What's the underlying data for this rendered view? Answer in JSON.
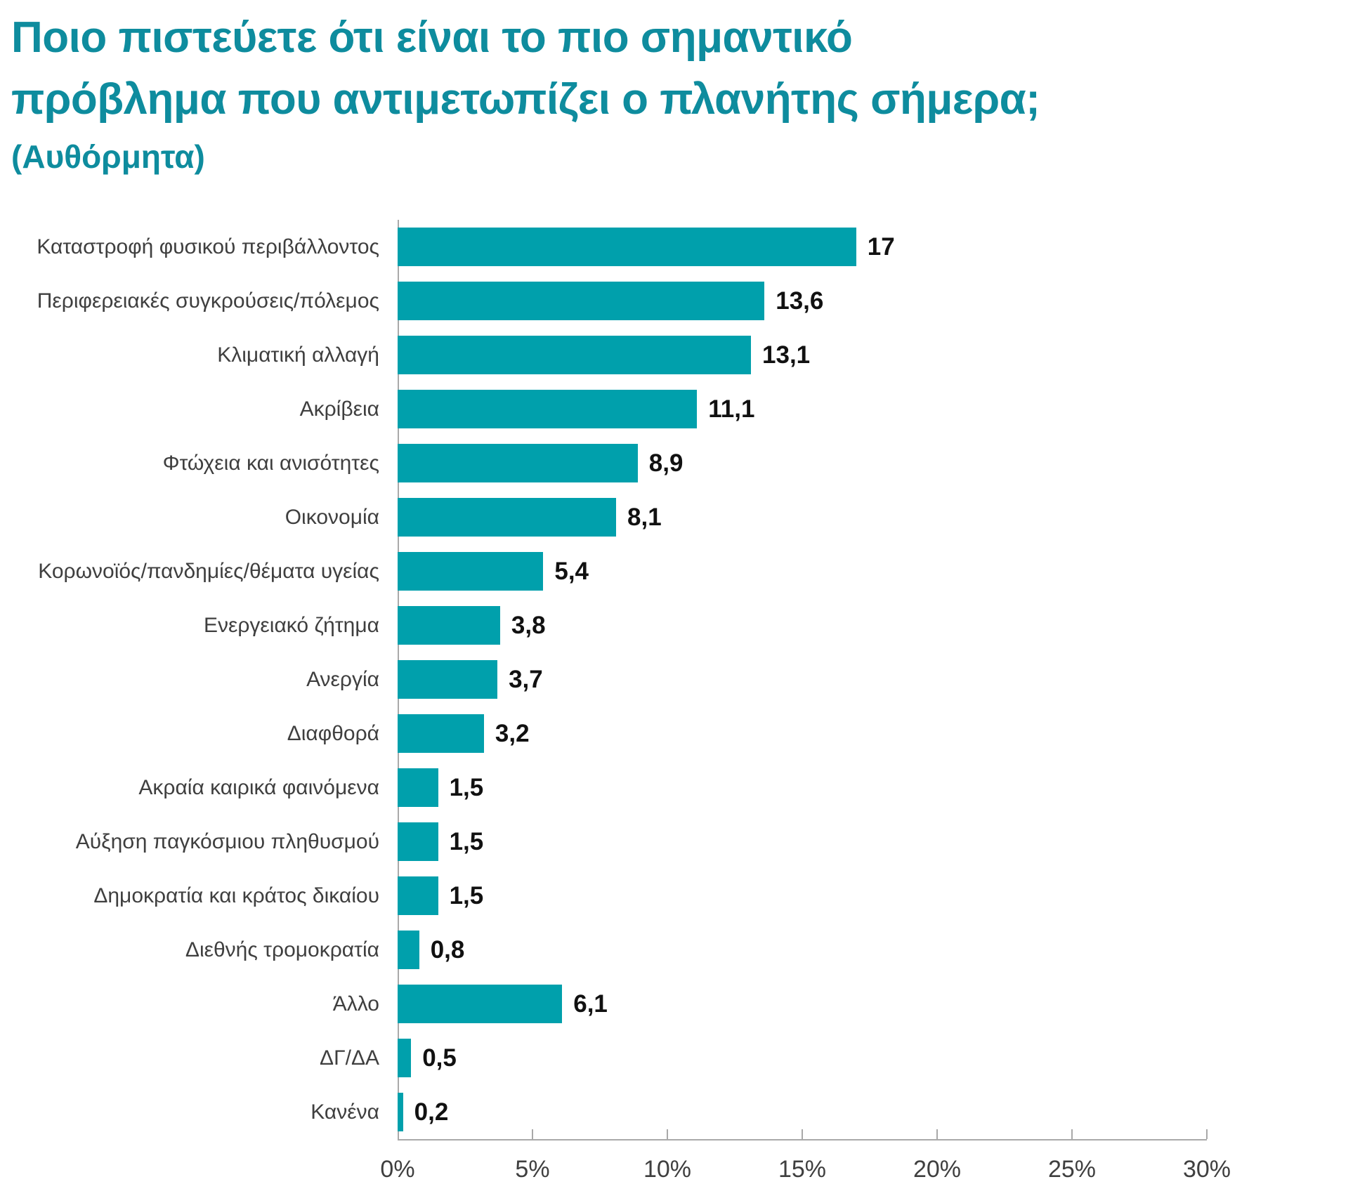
{
  "header": {
    "title_line1": "Ποιο πιστεύετε ότι είναι το πιο σημαντικό",
    "title_line2": "πρόβλημα που αντιμετωπίζει ο πλανήτης σήμερα;",
    "subtitle": "(Αυθόρμητα)"
  },
  "chart_data": {
    "type": "bar",
    "orientation": "horizontal",
    "title": "Ποιο πιστεύετε ότι είναι το πιο σημαντικό πρόβλημα που αντιμετωπίζει ο πλανήτης σήμερα; (Αυθόρμητα)",
    "categories": [
      "Καταστροφή φυσικού περιβάλλοντος",
      "Περιφερειακές συγκρούσεις/πόλεμος",
      "Κλιματική αλλαγή",
      "Ακρίβεια",
      "Φτώχεια και ανισότητες",
      "Οικονομία",
      "Κορωνοϊός/πανδημίες/θέματα υγείας",
      "Ενεργειακό ζήτημα",
      "Ανεργία",
      "Διαφθορά",
      "Ακραία καιρικά φαινόμενα",
      "Αύξηση παγκόσμιου πληθυσμού",
      "Δημοκρατία και κράτος δικαίου",
      "Διεθνής τρομοκρατία",
      "Άλλο",
      "ΔΓ/ΔΑ",
      "Κανένα"
    ],
    "values": [
      17,
      13.6,
      13.1,
      11.1,
      8.9,
      8.1,
      5.4,
      3.8,
      3.7,
      3.2,
      1.5,
      1.5,
      1.5,
      0.8,
      6.1,
      0.5,
      0.2
    ],
    "value_labels": [
      "17",
      "13,6",
      "13,1",
      "11,1",
      "8,9",
      "8,1",
      "5,4",
      "3,8",
      "3,7",
      "3,2",
      "1,5",
      "1,5",
      "1,5",
      "0,8",
      "6,1",
      "0,5",
      "0,2"
    ],
    "xlabel": "",
    "ylabel": "",
    "xlim": [
      0,
      30
    ],
    "x_tick_values": [
      0,
      5,
      10,
      15,
      20,
      25,
      30
    ],
    "x_tick_labels": [
      "0%",
      "5%",
      "10%",
      "15%",
      "20%",
      "25%",
      "30%"
    ],
    "grid": false,
    "legend": null,
    "bar_color": "#00A0AC"
  },
  "colors": {
    "bar_teal": "#00A0AC",
    "title_teal": "#0E8C9E",
    "category_text": "#3F3F3F",
    "value_text": "#111111",
    "axis_line": "#A9A9A9"
  }
}
